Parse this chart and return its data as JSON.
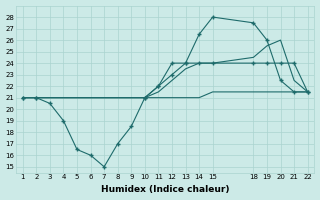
{
  "xlabel": "Humidex (Indice chaleur)",
  "background_color": "#cceae7",
  "grid_color": "#aad4d0",
  "line_color": "#1e6b6b",
  "ylim": [
    14.5,
    29
  ],
  "xlim": [
    0.5,
    22.5
  ],
  "yticks": [
    15,
    16,
    17,
    18,
    19,
    20,
    21,
    22,
    23,
    24,
    25,
    26,
    27,
    28
  ],
  "xticks": [
    1,
    2,
    3,
    4,
    5,
    6,
    7,
    8,
    9,
    10,
    11,
    12,
    13,
    14,
    15,
    18,
    19,
    20,
    21,
    22
  ],
  "lines": [
    {
      "x": [
        1,
        2,
        3,
        4,
        5,
        6,
        7,
        8,
        9,
        10,
        11,
        12,
        13,
        14,
        15,
        18,
        19,
        20,
        21,
        22
      ],
      "y": [
        21,
        21,
        20.5,
        19,
        16.5,
        16,
        15,
        17,
        18.5,
        21,
        22,
        24,
        24,
        26.5,
        28,
        27.5,
        26,
        22.5,
        21.5,
        21.5
      ],
      "marker": true
    },
    {
      "x": [
        1,
        2,
        10,
        11,
        12,
        13,
        14,
        15,
        18,
        19,
        20,
        21,
        22
      ],
      "y": [
        21,
        21,
        21,
        21.5,
        22.5,
        23.5,
        24,
        24,
        24.5,
        25.5,
        26,
        22.5,
        21.5
      ],
      "marker": false
    },
    {
      "x": [
        1,
        2,
        10,
        11,
        12,
        13,
        14,
        15,
        18,
        19,
        20,
        21,
        22
      ],
      "y": [
        21,
        21,
        21,
        22,
        23,
        24,
        24,
        24,
        24,
        24,
        24,
        24,
        21.5
      ],
      "marker": true
    },
    {
      "x": [
        1,
        2,
        10,
        11,
        12,
        13,
        14,
        15,
        18,
        19,
        20,
        21,
        22
      ],
      "y": [
        21,
        21,
        21,
        21,
        21,
        21,
        21,
        21.5,
        21.5,
        21.5,
        21.5,
        21.5,
        21.5
      ],
      "marker": false
    }
  ]
}
